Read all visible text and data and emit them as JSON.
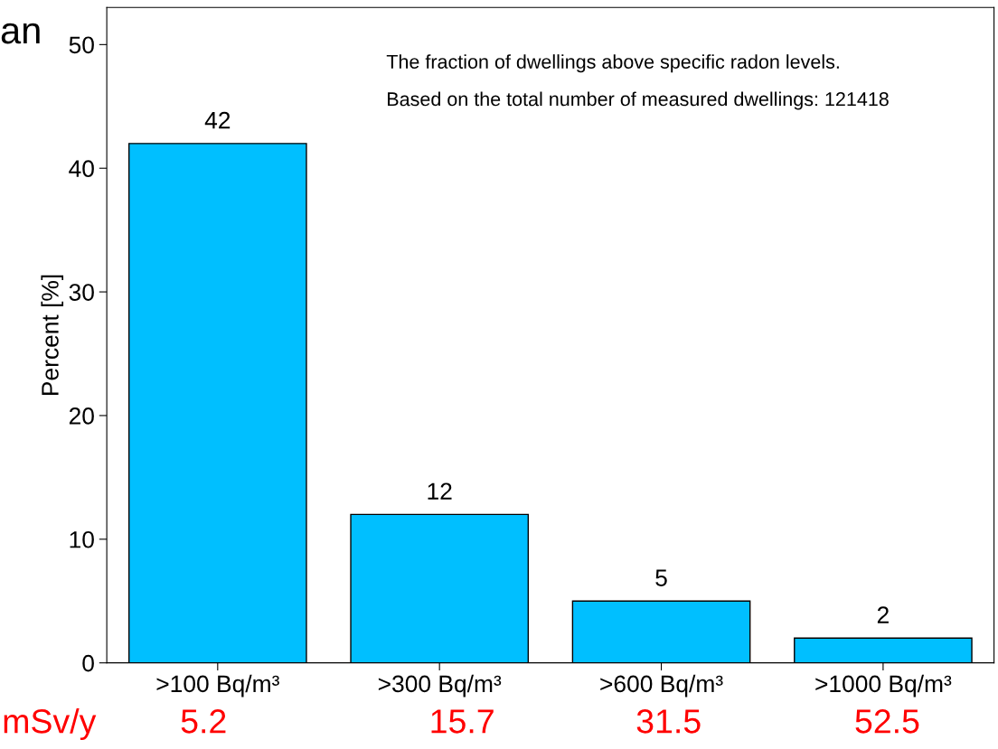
{
  "chart_data": {
    "type": "bar",
    "ylabel": "Percent [%]",
    "categories": [
      ">100 Bq/m³",
      ">300 Bq/m³",
      ">600 Bq/m³",
      ">1000 Bq/m³"
    ],
    "values": [
      42,
      12,
      5,
      2
    ],
    "color": "#00bfff",
    "data_labels": true,
    "ylim": [
      0,
      53
    ],
    "yticks": [
      0,
      10,
      20,
      30,
      40,
      50
    ],
    "grid": false,
    "annotations": [
      "The fraction of dwellings above specific radon levels.",
      "Based on the total number of measured dwellings: 121418",
      "an",
      "mSv/y",
      "5.2",
      "15.7",
      "31.5",
      "52.5"
    ]
  }
}
